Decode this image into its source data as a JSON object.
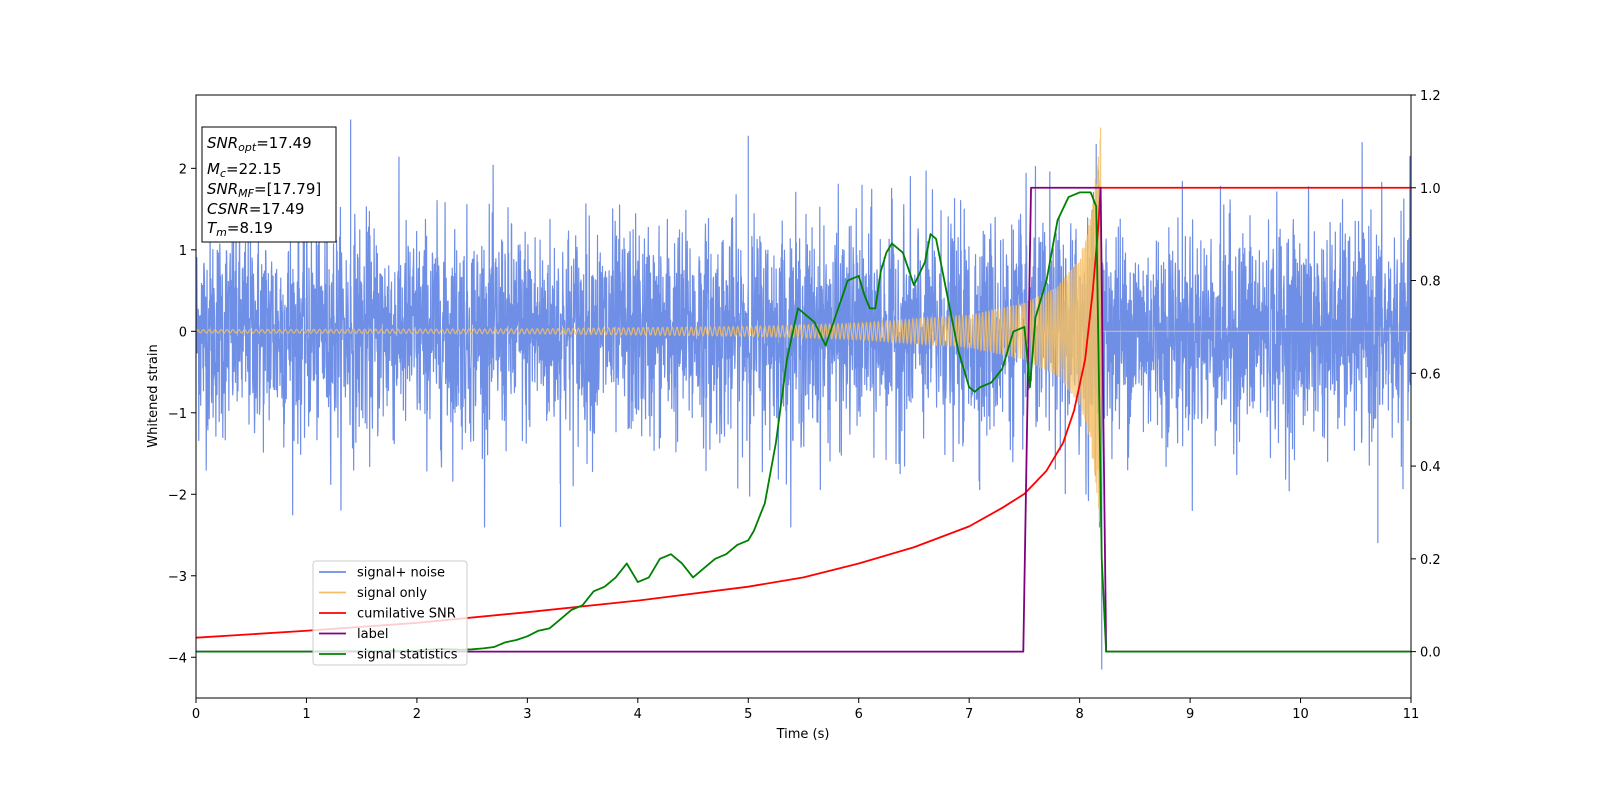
{
  "chart_data": {
    "type": "line",
    "title": "",
    "xlabel": "Time (s)",
    "ylabel": "Whitened strain",
    "xlim": [
      0,
      11
    ],
    "ylim": [
      -4.5,
      2.9
    ],
    "y2lim": [
      -0.1,
      1.2
    ],
    "x_ticks": [
      "0",
      "1",
      "2",
      "3",
      "4",
      "5",
      "6",
      "7",
      "8",
      "9",
      "10",
      "11"
    ],
    "y_ticks": [
      "2",
      "1",
      "0",
      "−1",
      "−2",
      "−3",
      "−4"
    ],
    "y2_ticks": [
      "1.2",
      "1.0",
      "0.8",
      "0.6",
      "0.4",
      "0.2",
      "0.0"
    ],
    "legend_placement": "lower-left",
    "grid": false,
    "info_box": {
      "snr_opt_base": "SNR",
      "snr_opt_sub": "opt",
      "snr_opt_value": "=17.49",
      "mc_base": "M",
      "mc_sub": "c",
      "mc_value": "=22.15",
      "snr_mf_base": "SNR",
      "snr_mf_sub": "MF",
      "snr_mf_value": "=[17.79]",
      "csnr_base": "CSNR",
      "csnr_value": "=17.49",
      "tm_base": "T",
      "tm_sub": "m",
      "tm_value": "=8.19"
    },
    "series": [
      {
        "name": "signal+ noise",
        "axis": "left",
        "color": "#6f8fe6",
        "kind": "noise",
        "noise_std": 0.65,
        "noise_max": 2.6,
        "noise_min": -2.4,
        "spike_points": [
          [
            1.4,
            2.6
          ],
          [
            3.3,
            -2.4
          ],
          [
            8.2,
            -4.15
          ],
          [
            8.15,
            2.3
          ],
          [
            10.7,
            -2.6
          ],
          [
            5.0,
            2.4
          ]
        ]
      },
      {
        "name": "signal only",
        "axis": "left",
        "color": "#f5c065",
        "kind": "chirp",
        "t_merger": 8.19,
        "peak": 2.5,
        "amplitude_points": [
          [
            0,
            0.02
          ],
          [
            3,
            0.03
          ],
          [
            5,
            0.06
          ],
          [
            6,
            0.1
          ],
          [
            7,
            0.2
          ],
          [
            7.5,
            0.35
          ],
          [
            7.8,
            0.55
          ],
          [
            8.0,
            0.9
          ],
          [
            8.1,
            1.4
          ],
          [
            8.17,
            2.2
          ],
          [
            8.19,
            2.5
          ]
        ]
      },
      {
        "name": "cumilative SNR",
        "axis": "right",
        "color": "#ff0000",
        "x": [
          0,
          1,
          2,
          3,
          4,
          5,
          5.5,
          6,
          6.5,
          7,
          7.3,
          7.5,
          7.7,
          7.85,
          7.95,
          8.05,
          8.12,
          8.17,
          8.19,
          11
        ],
        "y": [
          0.03,
          0.045,
          0.062,
          0.085,
          0.11,
          0.14,
          0.16,
          0.19,
          0.225,
          0.27,
          0.31,
          0.34,
          0.39,
          0.45,
          0.52,
          0.63,
          0.78,
          0.92,
          1.0,
          1.0
        ]
      },
      {
        "name": "label",
        "axis": "right",
        "color": "#800080",
        "x": [
          0,
          7.49,
          7.56,
          8.19,
          8.24,
          11
        ],
        "y": [
          0,
          0,
          1,
          1,
          0,
          0
        ]
      },
      {
        "name": "signal statistics",
        "axis": "right",
        "color": "#008000",
        "x": [
          0,
          0.5,
          1,
          1.5,
          2,
          2.1,
          2.2,
          2.3,
          2.4,
          2.5,
          2.6,
          2.7,
          2.8,
          2.9,
          3.0,
          3.1,
          3.2,
          3.3,
          3.4,
          3.5,
          3.6,
          3.7,
          3.8,
          3.9,
          4.0,
          4.1,
          4.2,
          4.3,
          4.4,
          4.5,
          4.6,
          4.7,
          4.8,
          4.9,
          5.0,
          5.05,
          5.15,
          5.25,
          5.35,
          5.45,
          5.6,
          5.7,
          5.8,
          5.9,
          6.0,
          6.05,
          6.1,
          6.15,
          6.2,
          6.25,
          6.3,
          6.4,
          6.5,
          6.6,
          6.65,
          6.7,
          6.8,
          6.9,
          7.0,
          7.05,
          7.1,
          7.2,
          7.3,
          7.4,
          7.5,
          7.55,
          7.6,
          7.7,
          7.8,
          7.9,
          8.0,
          8.1,
          8.15,
          8.2,
          8.24,
          11
        ],
        "y": [
          0,
          0,
          0,
          0.001,
          0.002,
          0.004,
          0.006,
          0.005,
          0.004,
          0.005,
          0.007,
          0.01,
          0.02,
          0.025,
          0.033,
          0.045,
          0.05,
          0.07,
          0.09,
          0.1,
          0.13,
          0.14,
          0.16,
          0.19,
          0.15,
          0.16,
          0.2,
          0.21,
          0.19,
          0.16,
          0.18,
          0.2,
          0.21,
          0.23,
          0.24,
          0.26,
          0.32,
          0.45,
          0.63,
          0.74,
          0.71,
          0.66,
          0.73,
          0.8,
          0.81,
          0.77,
          0.74,
          0.74,
          0.82,
          0.86,
          0.88,
          0.86,
          0.79,
          0.84,
          0.9,
          0.89,
          0.77,
          0.65,
          0.57,
          0.56,
          0.57,
          0.58,
          0.61,
          0.69,
          0.7,
          0.57,
          0.72,
          0.8,
          0.93,
          0.98,
          0.99,
          0.99,
          0.96,
          0.2,
          0,
          0
        ]
      }
    ]
  }
}
